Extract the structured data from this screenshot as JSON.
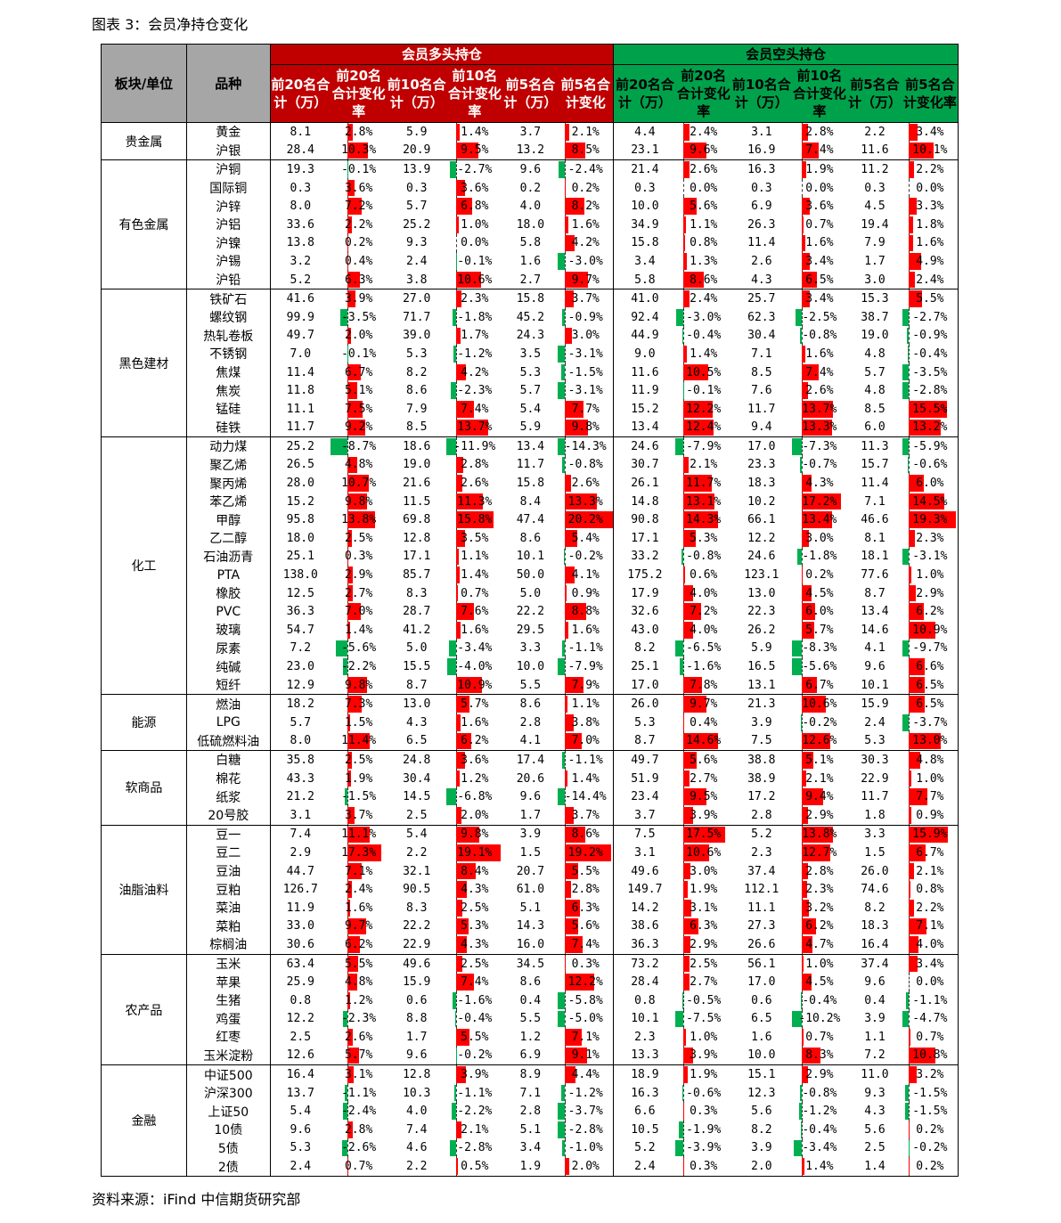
{
  "caption": "图表 3：会员净持仓变化",
  "source": "资料来源：iFind  中信期货研究部",
  "colors": {
    "long_header": "#c00000",
    "short_header": "#00a14b",
    "pos_bar": "#ff0000",
    "neg_bar": "#00b050",
    "head_grey": "#a6a6a6"
  },
  "headers": {
    "sector": "板块/单位",
    "name": "品种",
    "long_group": "会员多头持仓",
    "short_group": "会员空头持仓",
    "long_cols": [
      "前20名合计（万）",
      "前20名合计变化率",
      "前10名合计（万）",
      "前10名合计变化率",
      "前5名合计（万）",
      "前5名合计变化"
    ],
    "short_cols": [
      "前20名合计（万）",
      "前20名合计变化率",
      "前10名合计（万）",
      "前10名合计变化率",
      "前5名合计（万）",
      "前5名合计变化率"
    ]
  },
  "sectors": [
    {
      "name": "贵金属",
      "rows": [
        [
          "黄金",
          "8.1",
          "2.8%",
          "5.9",
          "1.4%",
          "3.7",
          "2.1%",
          "4.4",
          "2.4%",
          "3.1",
          "2.8%",
          "2.2",
          "3.4%"
        ],
        [
          "沪银",
          "28.4",
          "10.3%",
          "20.9",
          "9.5%",
          "13.2",
          "8.5%",
          "23.1",
          "9.6%",
          "16.9",
          "7.4%",
          "11.6",
          "10.1%"
        ]
      ]
    },
    {
      "name": "有色金属",
      "rows": [
        [
          "沪铜",
          "19.3",
          "-0.1%",
          "13.9",
          "-2.7%",
          "9.6",
          "-2.4%",
          "21.4",
          "2.6%",
          "16.3",
          "1.9%",
          "11.2",
          "2.2%"
        ],
        [
          "国际铜",
          "0.3",
          "3.6%",
          "0.3",
          "3.6%",
          "0.2",
          "0.2%",
          "0.3",
          "0.0%",
          "0.3",
          "0.0%",
          "0.3",
          "0.0%"
        ],
        [
          "沪锌",
          "8.0",
          "7.2%",
          "5.7",
          "6.8%",
          "4.0",
          "8.2%",
          "10.0",
          "5.6%",
          "6.9",
          "3.6%",
          "4.5",
          "3.3%"
        ],
        [
          "沪铝",
          "33.6",
          "2.2%",
          "25.2",
          "1.0%",
          "18.0",
          "1.6%",
          "34.9",
          "1.1%",
          "26.3",
          "0.7%",
          "19.4",
          "1.8%"
        ],
        [
          "沪镍",
          "13.8",
          "0.2%",
          "9.3",
          "0.0%",
          "5.8",
          "4.2%",
          "15.8",
          "0.8%",
          "11.4",
          "1.6%",
          "7.9",
          "1.6%"
        ],
        [
          "沪锡",
          "3.2",
          "0.4%",
          "2.4",
          "-0.1%",
          "1.6",
          "-3.0%",
          "3.4",
          "1.3%",
          "2.6",
          "3.4%",
          "1.7",
          "4.9%"
        ],
        [
          "沪铅",
          "5.2",
          "6.3%",
          "3.8",
          "10.6%",
          "2.7",
          "9.7%",
          "5.8",
          "8.6%",
          "4.3",
          "6.5%",
          "3.0",
          "2.4%"
        ]
      ]
    },
    {
      "name": "黑色建材",
      "rows": [
        [
          "铁矿石",
          "41.6",
          "3.9%",
          "27.0",
          "2.3%",
          "15.8",
          "3.7%",
          "41.0",
          "2.4%",
          "25.7",
          "3.4%",
          "15.3",
          "5.5%"
        ],
        [
          "螺纹钢",
          "99.9",
          "-3.5%",
          "71.7",
          "-1.8%",
          "45.2",
          "-0.9%",
          "92.4",
          "-3.0%",
          "62.3",
          "-2.5%",
          "38.7",
          "-2.7%"
        ],
        [
          "热轧卷板",
          "49.7",
          "2.0%",
          "39.0",
          "1.7%",
          "24.3",
          "3.0%",
          "44.9",
          "-0.4%",
          "30.4",
          "-0.8%",
          "19.0",
          "-0.9%"
        ],
        [
          "不锈钢",
          "7.0",
          "-0.1%",
          "5.3",
          "-1.2%",
          "3.5",
          "-3.1%",
          "9.0",
          "1.4%",
          "7.1",
          "1.6%",
          "4.8",
          "-0.4%"
        ],
        [
          "焦煤",
          "11.4",
          "6.7%",
          "8.2",
          "4.2%",
          "5.3",
          "-1.5%",
          "11.6",
          "10.5%",
          "8.5",
          "7.4%",
          "5.7",
          "-3.5%"
        ],
        [
          "焦炭",
          "11.8",
          "5.1%",
          "8.6",
          "-2.3%",
          "5.7",
          "-3.1%",
          "11.9",
          "-0.1%",
          "7.6",
          "2.6%",
          "4.8",
          "-2.8%"
        ],
        [
          "锰硅",
          "11.1",
          "7.5%",
          "7.9",
          "7.4%",
          "5.4",
          "7.7%",
          "15.2",
          "12.2%",
          "11.7",
          "13.7%",
          "8.5",
          "15.5%"
        ],
        [
          "硅铁",
          "11.7",
          "9.2%",
          "8.5",
          "13.7%",
          "5.9",
          "9.8%",
          "13.4",
          "12.4%",
          "9.4",
          "13.3%",
          "6.0",
          "13.2%"
        ]
      ]
    },
    {
      "name": "化工",
      "rows": [
        [
          "动力煤",
          "25.2",
          "-8.7%",
          "18.6",
          "-11.9%",
          "13.4",
          "-14.3%",
          "24.6",
          "-7.9%",
          "17.0",
          "-7.3%",
          "11.3",
          "-5.9%"
        ],
        [
          "聚乙烯",
          "26.5",
          "4.8%",
          "19.0",
          "2.8%",
          "11.7",
          "-0.8%",
          "30.7",
          "2.1%",
          "23.3",
          "-0.7%",
          "15.7",
          "-0.6%"
        ],
        [
          "聚丙烯",
          "28.0",
          "10.7%",
          "21.6",
          "2.6%",
          "15.8",
          "2.6%",
          "26.1",
          "11.7%",
          "18.3",
          "4.3%",
          "11.4",
          "6.0%"
        ],
        [
          "苯乙烯",
          "15.2",
          "9.8%",
          "11.5",
          "11.3%",
          "8.4",
          "13.3%",
          "14.8",
          "13.1%",
          "10.2",
          "17.2%",
          "7.1",
          "14.5%"
        ],
        [
          "甲醇",
          "95.8",
          "13.8%",
          "69.8",
          "15.8%",
          "47.4",
          "20.2%",
          "90.8",
          "14.3%",
          "66.1",
          "13.4%",
          "46.6",
          "19.3%"
        ],
        [
          "乙二醇",
          "18.0",
          "2.5%",
          "12.8",
          "3.5%",
          "8.6",
          "5.4%",
          "17.1",
          "5.3%",
          "12.2",
          "3.0%",
          "8.1",
          "2.3%"
        ],
        [
          "石油沥青",
          "25.1",
          "0.3%",
          "17.1",
          "1.1%",
          "10.1",
          "-0.2%",
          "33.2",
          "-0.8%",
          "24.6",
          "-1.8%",
          "18.1",
          "-3.1%"
        ],
        [
          "PTA",
          "138.0",
          "2.9%",
          "85.7",
          "1.4%",
          "50.0",
          "4.1%",
          "175.2",
          "0.6%",
          "123.1",
          "0.2%",
          "77.6",
          "1.0%"
        ],
        [
          "橡胶",
          "12.5",
          "2.7%",
          "8.3",
          "0.7%",
          "5.0",
          "0.9%",
          "17.9",
          "4.0%",
          "13.0",
          "4.5%",
          "8.7",
          "2.9%"
        ],
        [
          "PVC",
          "36.3",
          "7.0%",
          "28.7",
          "7.6%",
          "22.2",
          "8.8%",
          "32.6",
          "7.2%",
          "22.3",
          "6.0%",
          "13.4",
          "6.2%"
        ],
        [
          "玻璃",
          "54.7",
          "1.4%",
          "41.2",
          "1.6%",
          "29.5",
          "1.6%",
          "43.0",
          "4.0%",
          "26.2",
          "5.7%",
          "14.6",
          "10.9%"
        ],
        [
          "尿素",
          "7.2",
          "-5.6%",
          "5.0",
          "-3.4%",
          "3.3",
          "-1.1%",
          "8.2",
          "-6.5%",
          "5.9",
          "-8.3%",
          "4.1",
          "-9.7%"
        ],
        [
          "纯碱",
          "23.0",
          "-2.2%",
          "15.5",
          "-4.0%",
          "10.0",
          "-7.9%",
          "25.1",
          "-1.6%",
          "16.5",
          "-5.6%",
          "9.6",
          "6.6%"
        ],
        [
          "短纤",
          "12.9",
          "9.8%",
          "8.7",
          "10.9%",
          "5.5",
          "7.9%",
          "17.0",
          "7.8%",
          "13.1",
          "6.7%",
          "10.1",
          "6.5%"
        ]
      ]
    },
    {
      "name": "能源",
      "rows": [
        [
          "燃油",
          "18.2",
          "7.3%",
          "13.0",
          "5.7%",
          "8.6",
          "1.1%",
          "26.0",
          "9.7%",
          "21.3",
          "10.6%",
          "15.9",
          "6.5%"
        ],
        [
          "LPG",
          "5.7",
          "1.5%",
          "4.3",
          "1.6%",
          "2.8",
          "3.8%",
          "5.3",
          "0.4%",
          "3.9",
          "-0.2%",
          "2.4",
          "-3.7%"
        ],
        [
          "低硫燃料油",
          "8.0",
          "11.4%",
          "6.5",
          "6.2%",
          "4.1",
          "7.0%",
          "8.7",
          "14.6%",
          "7.5",
          "12.6%",
          "5.3",
          "13.0%"
        ]
      ]
    },
    {
      "name": "软商品",
      "rows": [
        [
          "白糖",
          "35.8",
          "2.5%",
          "24.8",
          "3.6%",
          "17.4",
          "-1.1%",
          "49.7",
          "5.6%",
          "38.8",
          "5.1%",
          "30.3",
          "4.8%"
        ],
        [
          "棉花",
          "43.3",
          "1.9%",
          "30.4",
          "1.2%",
          "20.6",
          "1.4%",
          "51.9",
          "2.7%",
          "38.9",
          "2.1%",
          "22.9",
          "1.0%"
        ],
        [
          "纸浆",
          "21.2",
          "-1.5%",
          "14.5",
          "-6.8%",
          "9.6",
          "-14.4%",
          "23.4",
          "9.5%",
          "17.2",
          "9.4%",
          "11.7",
          "7.7%"
        ],
        [
          "20号胶",
          "3.1",
          "3.7%",
          "2.5",
          "2.0%",
          "1.7",
          "3.7%",
          "3.7",
          "3.9%",
          "2.8",
          "2.9%",
          "1.8",
          "0.9%"
        ]
      ]
    },
    {
      "name": "油脂油料",
      "rows": [
        [
          "豆一",
          "7.4",
          "11.1%",
          "5.4",
          "9.8%",
          "3.9",
          "8.6%",
          "7.5",
          "17.5%",
          "5.2",
          "13.8%",
          "3.3",
          "15.9%"
        ],
        [
          "豆二",
          "2.9",
          "17.3%",
          "2.2",
          "19.1%",
          "1.5",
          "19.2%",
          "3.1",
          "10.6%",
          "2.3",
          "12.7%",
          "1.5",
          "6.7%"
        ],
        [
          "豆油",
          "44.7",
          "7.1%",
          "32.1",
          "8.4%",
          "20.7",
          "5.5%",
          "49.6",
          "3.0%",
          "37.4",
          "2.8%",
          "26.0",
          "2.1%"
        ],
        [
          "豆粕",
          "126.7",
          "2.4%",
          "90.5",
          "4.3%",
          "61.0",
          "2.8%",
          "149.7",
          "1.9%",
          "112.1",
          "2.3%",
          "74.6",
          "0.8%"
        ],
        [
          "菜油",
          "11.9",
          "1.6%",
          "8.3",
          "2.5%",
          "5.1",
          "6.3%",
          "14.2",
          "3.1%",
          "11.1",
          "3.2%",
          "8.2",
          "2.2%"
        ],
        [
          "菜粕",
          "33.0",
          "9.7%",
          "22.2",
          "5.3%",
          "14.3",
          "5.6%",
          "38.6",
          "6.3%",
          "27.3",
          "6.2%",
          "18.3",
          "7.1%"
        ],
        [
          "棕榈油",
          "30.6",
          "6.2%",
          "22.9",
          "4.3%",
          "16.0",
          "7.4%",
          "36.3",
          "2.9%",
          "26.6",
          "4.7%",
          "16.4",
          "4.0%"
        ]
      ]
    },
    {
      "name": "农产品",
      "rows": [
        [
          "玉米",
          "63.4",
          "5.5%",
          "49.6",
          "2.5%",
          "34.5",
          "0.3%",
          "73.2",
          "2.5%",
          "56.1",
          "1.0%",
          "37.4",
          "3.4%"
        ],
        [
          "苹果",
          "25.9",
          "4.8%",
          "15.9",
          "7.4%",
          "8.6",
          "12.2%",
          "28.4",
          "2.7%",
          "17.0",
          "4.5%",
          "9.6",
          "0.0%"
        ],
        [
          "生猪",
          "0.8",
          "1.2%",
          "0.6",
          "-1.6%",
          "0.4",
          "-5.8%",
          "0.8",
          "-0.5%",
          "0.6",
          "-0.4%",
          "0.4",
          "-1.1%"
        ],
        [
          "鸡蛋",
          "12.2",
          "-2.3%",
          "8.8",
          "-0.4%",
          "5.5",
          "-5.0%",
          "10.1",
          "-7.5%",
          "6.5",
          "-10.2%",
          "3.9",
          "-4.7%"
        ],
        [
          "红枣",
          "2.5",
          "2.6%",
          "1.7",
          "5.5%",
          "1.2",
          "7.1%",
          "2.3",
          "1.0%",
          "1.6",
          "0.7%",
          "1.1",
          "0.7%"
        ],
        [
          "玉米淀粉",
          "12.6",
          "5.7%",
          "9.6",
          "-0.2%",
          "6.9",
          "9.1%",
          "13.3",
          "3.9%",
          "10.0",
          "8.3%",
          "7.2",
          "10.8%"
        ]
      ]
    },
    {
      "name": "金融",
      "rows": [
        [
          "中证500",
          "16.4",
          "3.1%",
          "12.8",
          "3.9%",
          "8.9",
          "4.4%",
          "18.9",
          "1.9%",
          "15.1",
          "2.9%",
          "11.0",
          "3.2%"
        ],
        [
          "沪深300",
          "13.7",
          "-1.1%",
          "10.3",
          "-1.1%",
          "7.1",
          "-1.2%",
          "16.3",
          "-0.6%",
          "12.3",
          "-0.8%",
          "9.3",
          "-1.5%"
        ],
        [
          "上证50",
          "5.4",
          "-2.4%",
          "4.0",
          "-2.2%",
          "2.8",
          "-3.7%",
          "6.6",
          "0.3%",
          "5.6",
          "-1.2%",
          "4.3",
          "-1.5%"
        ],
        [
          "10债",
          "9.6",
          "2.8%",
          "7.4",
          "2.1%",
          "5.1",
          "-2.8%",
          "10.5",
          "-1.9%",
          "8.2",
          "-0.4%",
          "5.6",
          "0.2%"
        ],
        [
          "5债",
          "5.3",
          "-2.6%",
          "4.6",
          "-2.8%",
          "3.4",
          "-1.0%",
          "5.2",
          "-3.9%",
          "3.9",
          "-3.4%",
          "2.5",
          "-0.2%"
        ],
        [
          "2债",
          "2.4",
          "0.7%",
          "2.2",
          "0.5%",
          "1.9",
          "2.0%",
          "2.4",
          "0.3%",
          "2.0",
          "1.4%",
          "1.4",
          "0.2%"
        ]
      ]
    }
  ]
}
